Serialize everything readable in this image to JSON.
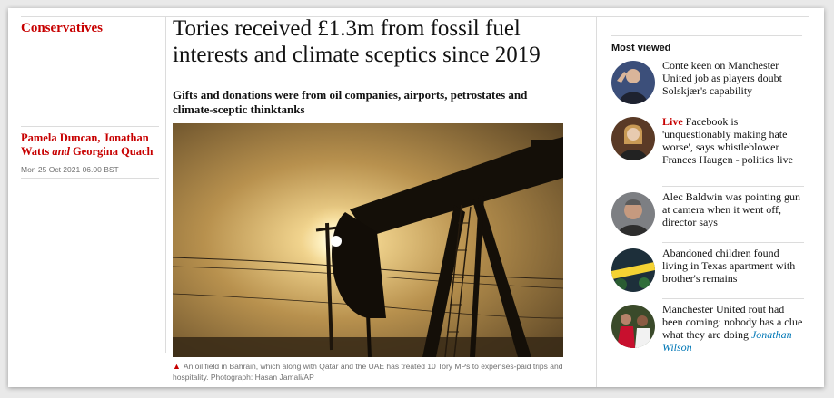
{
  "section": "Conservatives",
  "headline": "Tories received £1.3m from fossil fuel interests and climate sceptics since 2019",
  "standfirst": "Gifts and donations were from oil companies, airports, petrostates and climate-sceptic thinktanks",
  "byline": {
    "author_1": "Pamela Duncan",
    "author_2": "Jonathan Watts",
    "conjunction": "and",
    "author_3": "Georgina Quach",
    "date": "Mon 25 Oct 2021 06.00 BST"
  },
  "caption": {
    "text": "An oil field in Bahrain, which along with Qatar and the UAE has treated 10 Tory MPs to expenses-paid trips and hospitality. Photograph: Hasan Jamali/AP"
  },
  "most_viewed": {
    "title": "Most viewed",
    "items": [
      {
        "kicker": "",
        "headline": "Conte keen on Manchester United job as players doubt Solskjær's capability",
        "author": ""
      },
      {
        "kicker": "Live",
        "headline": "Facebook is 'unquestionably making hate worse', says whistleblower Frances Haugen - politics live",
        "author": ""
      },
      {
        "kicker": "",
        "headline": "Alec Baldwin was pointing gun at camera when it went off, director says",
        "author": ""
      },
      {
        "kicker": "",
        "headline": "Abandoned children found living in Texas apartment with brother's remains",
        "author": ""
      },
      {
        "kicker": "",
        "headline": "Manchester United rout had been coming: nobody has a clue what they are doing",
        "author": "Jonathan Wilson"
      }
    ]
  },
  "colors": {
    "accent": "#c70000",
    "link": "#0077b6",
    "text": "#121212",
    "muted": "#707070"
  },
  "icons": {
    "caption_marker": "triangle-icon"
  }
}
